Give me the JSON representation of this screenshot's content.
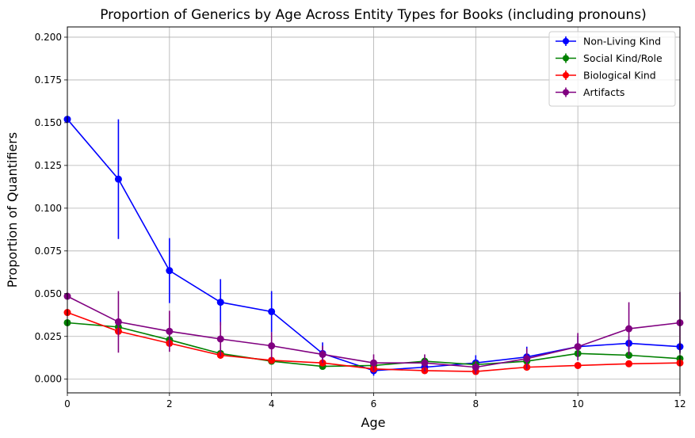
{
  "chart_data": {
    "type": "line",
    "title": "Proportion of Generics by Age Across Entity Types for Books (including pronouns)",
    "xlabel": "Age",
    "ylabel": "Proportion of Quantifiers",
    "xlim": [
      0,
      12
    ],
    "ylim": [
      -0.008,
      0.206
    ],
    "xticks": [
      0,
      2,
      4,
      6,
      8,
      10,
      12
    ],
    "yticks": [
      0.0,
      0.025,
      0.05,
      0.075,
      0.1,
      0.125,
      0.15,
      0.175,
      0.2
    ],
    "ytick_labels": [
      "0.000",
      "0.025",
      "0.050",
      "0.075",
      "0.100",
      "0.125",
      "0.150",
      "0.175",
      "0.200"
    ],
    "grid": true,
    "legend_position": "top-right",
    "x": [
      0,
      1,
      2,
      3,
      4,
      5,
      6,
      7,
      8,
      9,
      10,
      11,
      12
    ],
    "series": [
      {
        "name": "Non-Living Kind",
        "color": "#0000ff",
        "values": [
          0.152,
          0.117,
          0.0635,
          0.045,
          0.0395,
          0.015,
          0.005,
          0.007,
          0.0095,
          0.013,
          0.019,
          0.021,
          0.019
        ],
        "err": [
          0.0,
          0.035,
          0.019,
          0.0135,
          0.012,
          0.0065,
          0.003,
          0.004,
          0.0045,
          0.006,
          0.006,
          0.004,
          0.003
        ]
      },
      {
        "name": "Social Kind/Role",
        "color": "#008000",
        "values": [
          0.033,
          0.0305,
          0.023,
          0.015,
          0.0105,
          0.0075,
          0.008,
          0.0105,
          0.0085,
          0.0105,
          0.015,
          0.014,
          0.012
        ],
        "err": [
          0.0,
          0.004,
          0.004,
          0.003,
          0.002,
          0.0015,
          0.002,
          0.002,
          0.002,
          0.002,
          0.002,
          0.002,
          0.002
        ]
      },
      {
        "name": "Biological Kind",
        "color": "#ff0000",
        "values": [
          0.039,
          0.028,
          0.021,
          0.014,
          0.011,
          0.0095,
          0.006,
          0.005,
          0.0045,
          0.007,
          0.008,
          0.009,
          0.0095
        ],
        "err": [
          0.0,
          0.003,
          0.002,
          0.002,
          0.0015,
          0.0015,
          0.001,
          0.001,
          0.001,
          0.001,
          0.001,
          0.001,
          0.001
        ]
      },
      {
        "name": "Artifacts",
        "color": "#800080",
        "values": [
          0.0485,
          0.0335,
          0.028,
          0.0235,
          0.0195,
          0.0145,
          0.0095,
          0.0095,
          0.007,
          0.012,
          0.019,
          0.0295,
          0.033
        ],
        "err": [
          0.0,
          0.018,
          0.012,
          0.01,
          0.008,
          0.005,
          0.005,
          0.005,
          0.004,
          0.006,
          0.008,
          0.0155,
          0.018
        ]
      }
    ]
  }
}
